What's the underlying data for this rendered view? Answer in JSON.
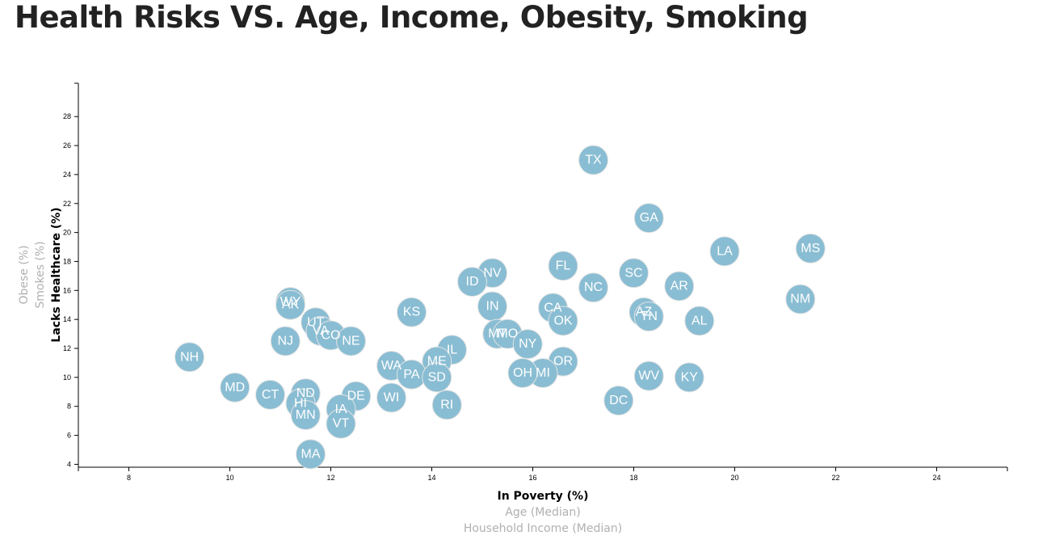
{
  "page": {
    "title": "Health Risks VS. Age, Income, Obesity, Smoking"
  },
  "chart_data": {
    "type": "scatter",
    "title": "Health Risks VS. Age, Income, Obesity, Smoking",
    "xlabel": "In Poverty (%)",
    "ylabel": "Lacks Healthcare (%)",
    "x_axis_options": [
      {
        "label": "In Poverty (%)",
        "active": true
      },
      {
        "label": "Age (Median)",
        "active": false
      },
      {
        "label": "Household Income (Median)",
        "active": false
      }
    ],
    "y_axis_options": [
      {
        "label": "Lacks Healthcare (%)",
        "active": true
      },
      {
        "label": "Smokes (%)",
        "active": false
      },
      {
        "label": "Obese (%)",
        "active": false
      }
    ],
    "xlim": [
      7.0,
      25.4
    ],
    "ylim": [
      3.8,
      30.3
    ],
    "x_ticks": [
      8,
      10,
      12,
      14,
      16,
      18,
      20,
      22,
      24
    ],
    "y_ticks": [
      4,
      6,
      8,
      10,
      12,
      14,
      16,
      18,
      20,
      22,
      24,
      26,
      28
    ],
    "grid": false,
    "points": [
      {
        "label": "TX",
        "x": 17.2,
        "y": 25.0
      },
      {
        "label": "GA",
        "x": 18.3,
        "y": 21.0
      },
      {
        "label": "LA",
        "x": 19.8,
        "y": 18.7
      },
      {
        "label": "MS",
        "x": 21.5,
        "y": 18.9
      },
      {
        "label": "FL",
        "x": 16.6,
        "y": 17.7
      },
      {
        "label": "SC",
        "x": 18.0,
        "y": 17.2
      },
      {
        "label": "NV",
        "x": 15.2,
        "y": 17.2
      },
      {
        "label": "ID",
        "x": 14.8,
        "y": 16.6
      },
      {
        "label": "NC",
        "x": 17.2,
        "y": 16.2
      },
      {
        "label": "AR",
        "x": 18.9,
        "y": 16.3
      },
      {
        "label": "NM",
        "x": 21.3,
        "y": 15.4
      },
      {
        "label": "IN",
        "x": 15.2,
        "y": 14.9
      },
      {
        "label": "CA",
        "x": 16.4,
        "y": 14.8
      },
      {
        "label": "KS",
        "x": 13.6,
        "y": 14.5
      },
      {
        "label": "WY",
        "x": 11.2,
        "y": 15.2
      },
      {
        "label": "AK",
        "x": 11.2,
        "y": 15.0
      },
      {
        "label": "AZ",
        "x": 18.2,
        "y": 14.5
      },
      {
        "label": "TN",
        "x": 18.3,
        "y": 14.2
      },
      {
        "label": "OK",
        "x": 16.6,
        "y": 13.9
      },
      {
        "label": "AL",
        "x": 19.3,
        "y": 13.9
      },
      {
        "label": "UT",
        "x": 11.7,
        "y": 13.8
      },
      {
        "label": "VA",
        "x": 11.8,
        "y": 13.2
      },
      {
        "label": "CO",
        "x": 12.0,
        "y": 12.9
      },
      {
        "label": "NE",
        "x": 12.4,
        "y": 12.5
      },
      {
        "label": "NJ",
        "x": 11.1,
        "y": 12.5
      },
      {
        "label": "MT",
        "x": 15.3,
        "y": 13.0
      },
      {
        "label": "MO",
        "x": 15.5,
        "y": 13.0
      },
      {
        "label": "NY",
        "x": 15.9,
        "y": 12.3
      },
      {
        "label": "IL",
        "x": 14.4,
        "y": 11.9
      },
      {
        "label": "NH",
        "x": 9.2,
        "y": 11.4
      },
      {
        "label": "OR",
        "x": 16.6,
        "y": 11.1
      },
      {
        "label": "ME",
        "x": 14.1,
        "y": 11.1
      },
      {
        "label": "WA",
        "x": 13.2,
        "y": 10.8
      },
      {
        "label": "PA",
        "x": 13.6,
        "y": 10.2
      },
      {
        "label": "SD",
        "x": 14.1,
        "y": 10.0
      },
      {
        "label": "MI",
        "x": 16.2,
        "y": 10.3
      },
      {
        "label": "OH",
        "x": 15.8,
        "y": 10.3
      },
      {
        "label": "WV",
        "x": 18.3,
        "y": 10.1
      },
      {
        "label": "KY",
        "x": 19.1,
        "y": 10.0
      },
      {
        "label": "MD",
        "x": 10.1,
        "y": 9.3
      },
      {
        "label": "CT",
        "x": 10.8,
        "y": 8.8
      },
      {
        "label": "ND",
        "x": 11.5,
        "y": 8.9
      },
      {
        "label": "DE",
        "x": 12.5,
        "y": 8.7
      },
      {
        "label": "WI",
        "x": 13.2,
        "y": 8.6
      },
      {
        "label": "DC",
        "x": 17.7,
        "y": 8.4
      },
      {
        "label": "HI",
        "x": 11.4,
        "y": 8.2
      },
      {
        "label": "RI",
        "x": 14.3,
        "y": 8.1
      },
      {
        "label": "IA",
        "x": 12.2,
        "y": 7.8
      },
      {
        "label": "MN",
        "x": 11.5,
        "y": 7.4
      },
      {
        "label": "VT",
        "x": 12.2,
        "y": 6.8
      },
      {
        "label": "MA",
        "x": 11.6,
        "y": 4.7
      }
    ]
  }
}
